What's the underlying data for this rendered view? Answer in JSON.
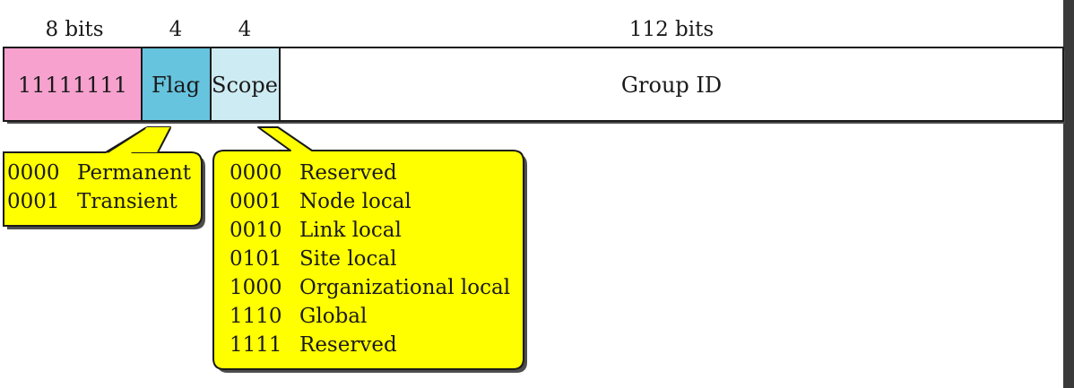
{
  "bit_widths": {
    "prefix": "8 bits",
    "flag": "4",
    "scope": "4",
    "group_id": "112 bits"
  },
  "fields": {
    "prefix": "11111111",
    "flag": "Flag",
    "scope": "Scope",
    "group_id": "Group ID"
  },
  "colors": {
    "prefix": "#f7a1cf",
    "flag": "#66c4df",
    "scope": "#cdebf2",
    "group_id": "#ffffff",
    "callout": "#ffff00",
    "border": "#1a1a1a",
    "right_edge": "#3a3a3a"
  },
  "flag_values": [
    {
      "code": "0000",
      "meaning": "Permanent"
    },
    {
      "code": "0001",
      "meaning": "Transient"
    }
  ],
  "scope_values": [
    {
      "code": "0000",
      "meaning": "Reserved"
    },
    {
      "code": "0001",
      "meaning": "Node local"
    },
    {
      "code": "0010",
      "meaning": "Link local"
    },
    {
      "code": "0101",
      "meaning": "Site local"
    },
    {
      "code": "1000",
      "meaning": "Organizational local"
    },
    {
      "code": "1110",
      "meaning": "Global"
    },
    {
      "code": "1111",
      "meaning": "Reserved"
    }
  ]
}
